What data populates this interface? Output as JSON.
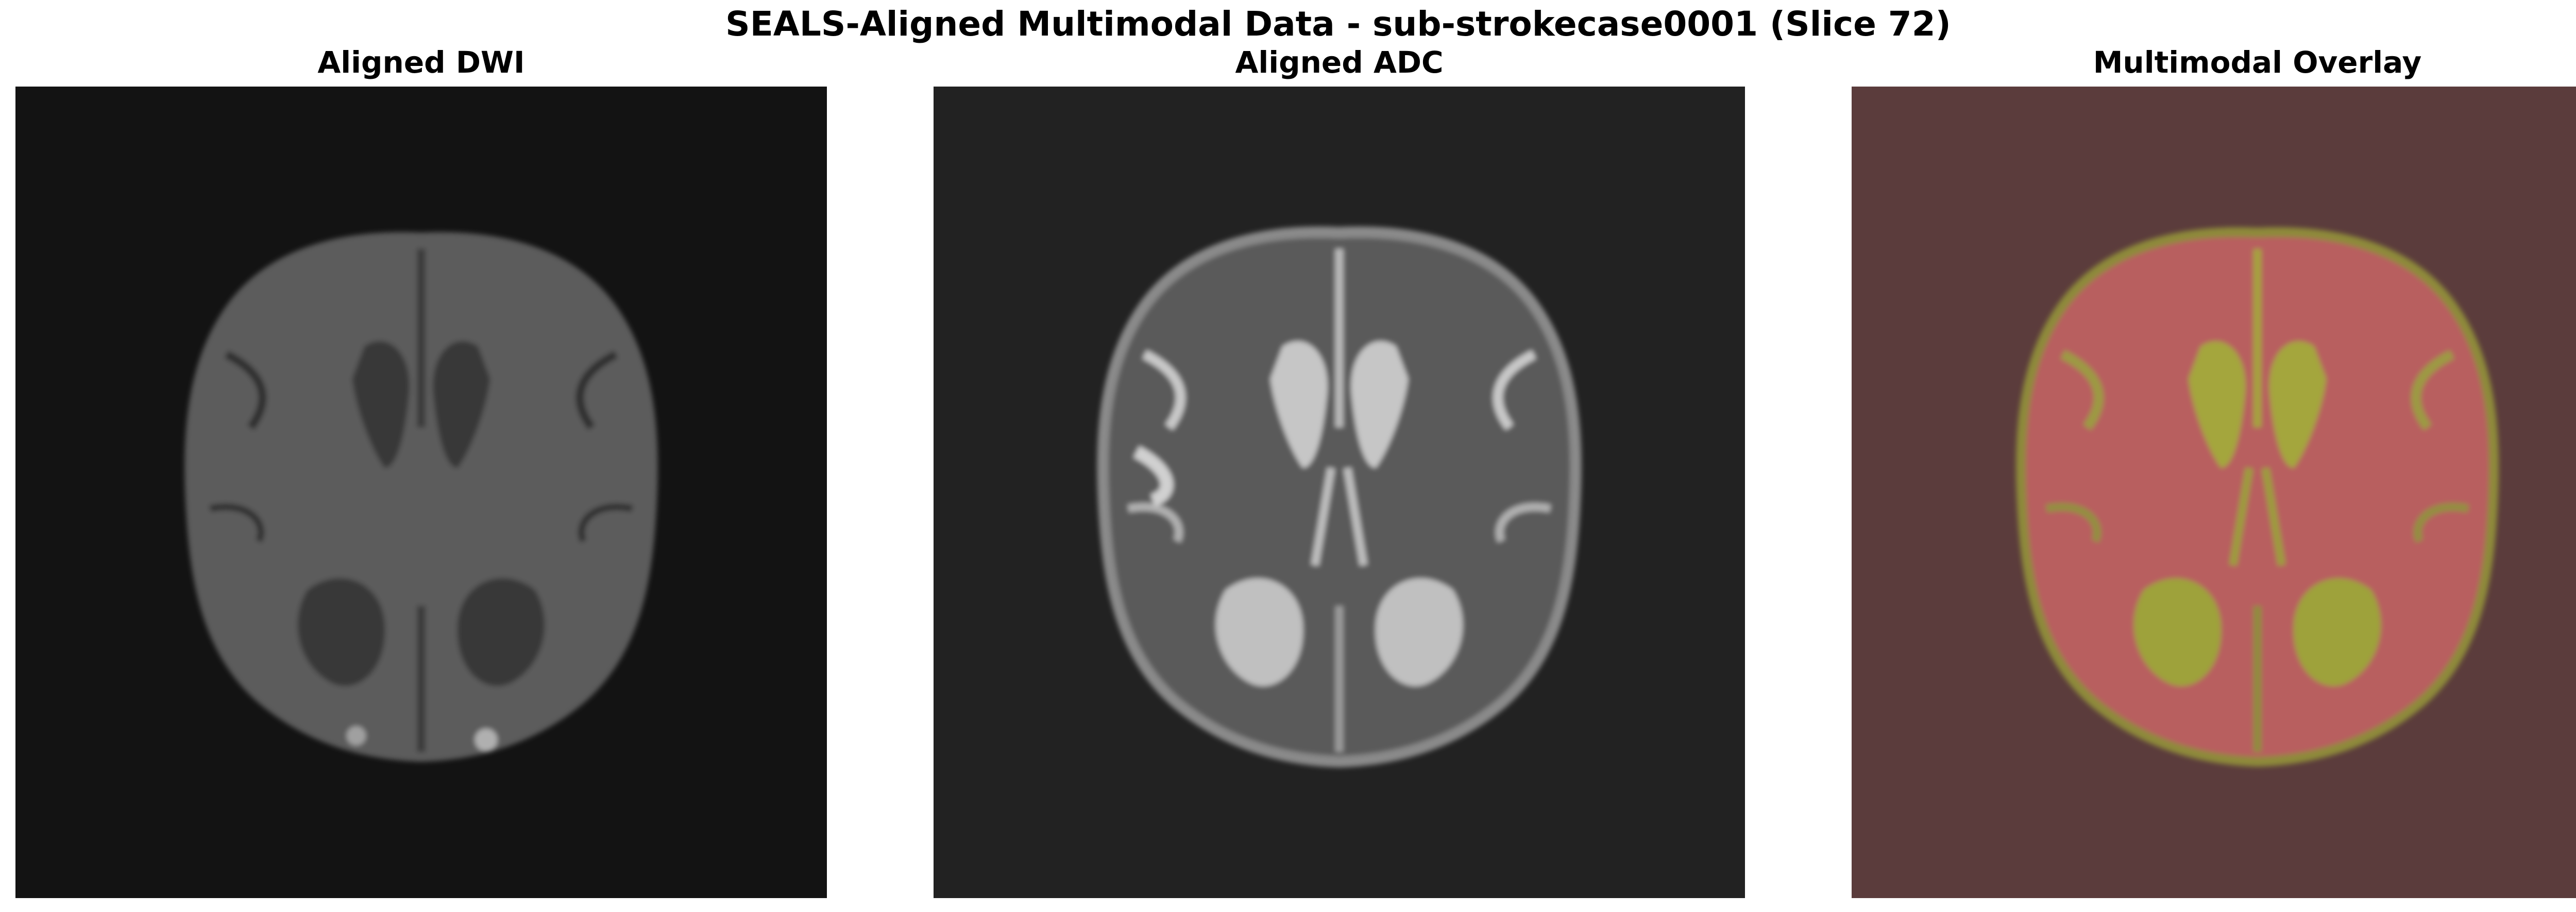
{
  "figure": {
    "title": "SEALS-Aligned Multimodal Data - sub-strokecase0001 (Slice 72)"
  },
  "panels": [
    {
      "title": "Aligned DWI",
      "background_color": "#131313"
    },
    {
      "title": "Aligned ADC",
      "background_color": "#222222"
    },
    {
      "title": "Multimodal Overlay",
      "background_color": "#5b3c3c"
    }
  ]
}
